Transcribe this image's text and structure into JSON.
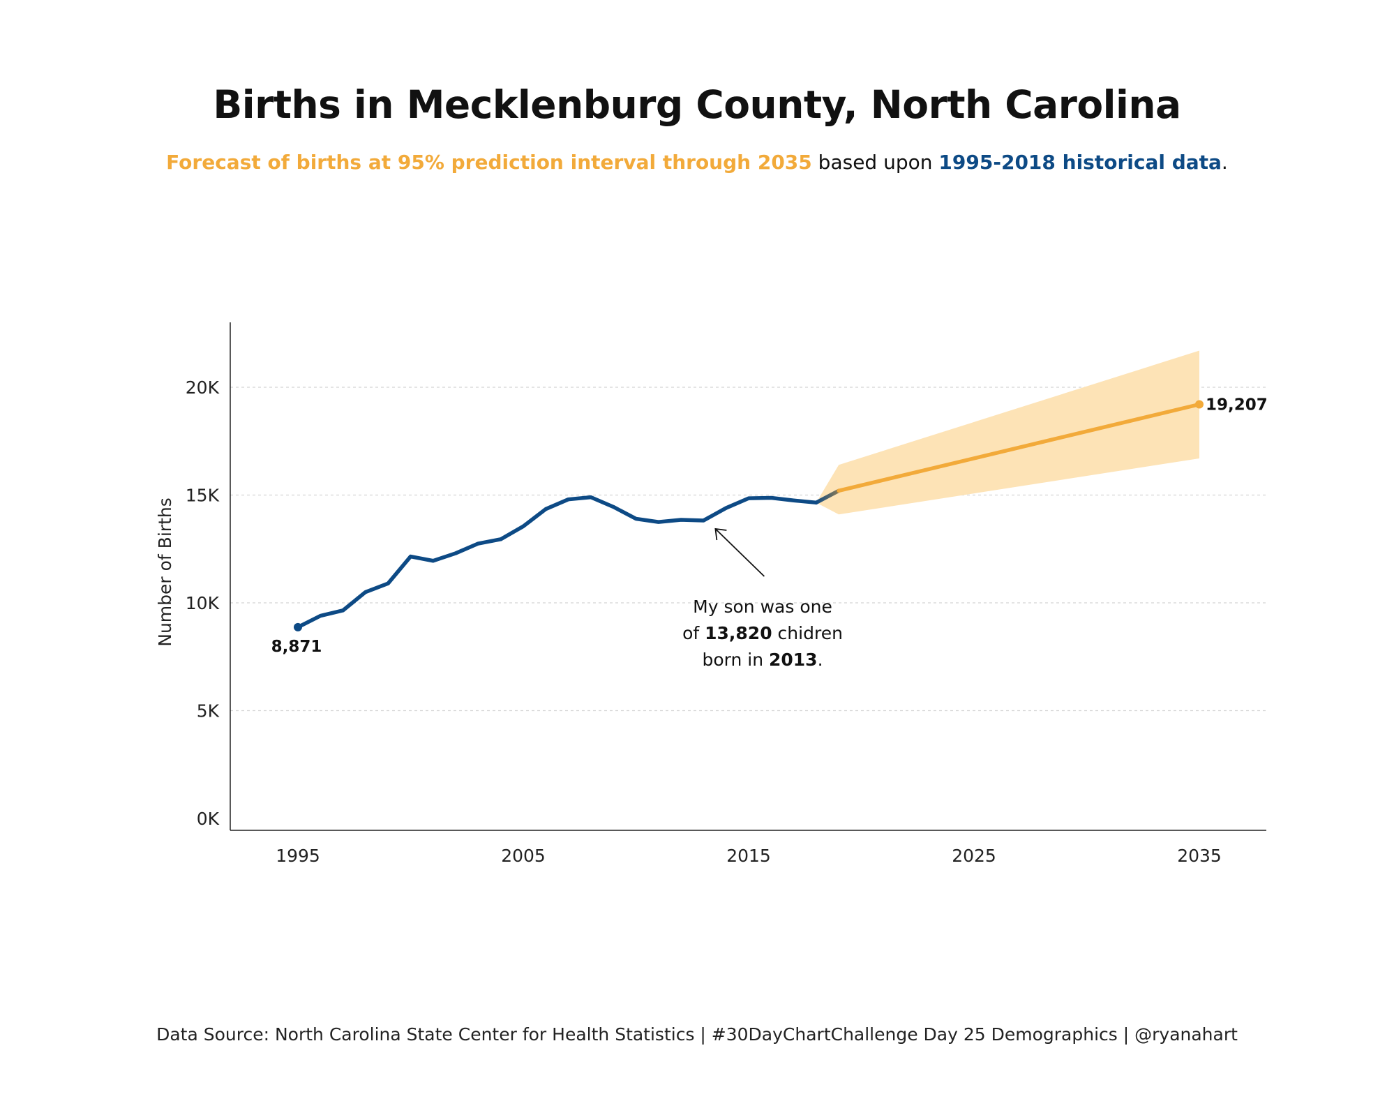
{
  "header": {
    "title": "Births in Mecklenburg County, North Carolina",
    "subtitle_forecast": "Forecast of births at 95% prediction interval through 2035",
    "subtitle_mid": " based upon ",
    "subtitle_historical": "1995-2018 historical data",
    "subtitle_end": "."
  },
  "footer": {
    "text": "Data Source: North Carolina State Center for Health Statistics | #30DayChartChallenge Day 25 Demographics | @ryanahart"
  },
  "colors": {
    "historical": "#0d4a85",
    "forecast": "#f2aa3a",
    "band": "#fde3b6",
    "grid": "#d4d4d4",
    "axis": "#222222"
  },
  "chart_data": {
    "type": "line",
    "ylabel": "Number of Births",
    "xlabel": "",
    "xlim": [
      1992,
      2038
    ],
    "ylim": [
      0,
      20000
    ],
    "x_ticks": [
      1995,
      2005,
      2015,
      2025,
      2035
    ],
    "x_tick_labels": [
      "1995",
      "2005",
      "2015",
      "2025",
      "2035"
    ],
    "y_ticks": [
      0,
      5000,
      10000,
      15000,
      20000
    ],
    "y_tick_labels": [
      "0K",
      "5K",
      "10K",
      "15K",
      "20K"
    ],
    "grid": "horizontal dashed",
    "series": [
      {
        "role": "historical",
        "x": [
          1995,
          1996,
          1997,
          1998,
          1999,
          2000,
          2001,
          2002,
          2003,
          2004,
          2005,
          2006,
          2007,
          2008,
          2009,
          2010,
          2011,
          2012,
          2013,
          2014,
          2015,
          2016,
          2017,
          2018
        ],
        "y": [
          8871,
          9400,
          9650,
          10500,
          10900,
          12150,
          11950,
          12300,
          12750,
          12950,
          13550,
          14350,
          14800,
          14900,
          14450,
          13900,
          13750,
          13850,
          13820,
          14400,
          14850,
          14870,
          14750,
          14650
        ]
      },
      {
        "role": "forecast",
        "x": [
          2018,
          2019,
          2035
        ],
        "y": [
          14650,
          15200,
          19207
        ],
        "lower": [
          14650,
          14100,
          16700
        ],
        "upper": [
          14650,
          16400,
          21700
        ]
      }
    ],
    "labels": {
      "start_value": "8,871",
      "end_value": "19,207"
    },
    "annotation": {
      "target": [
        2013,
        13820
      ],
      "line1": "My son was one",
      "line2_pre": "of ",
      "line2_bold": "13,820",
      "line2_post": " chidren",
      "line3_pre": "born in ",
      "line3_bold": "2013",
      "line3_post": "."
    }
  }
}
